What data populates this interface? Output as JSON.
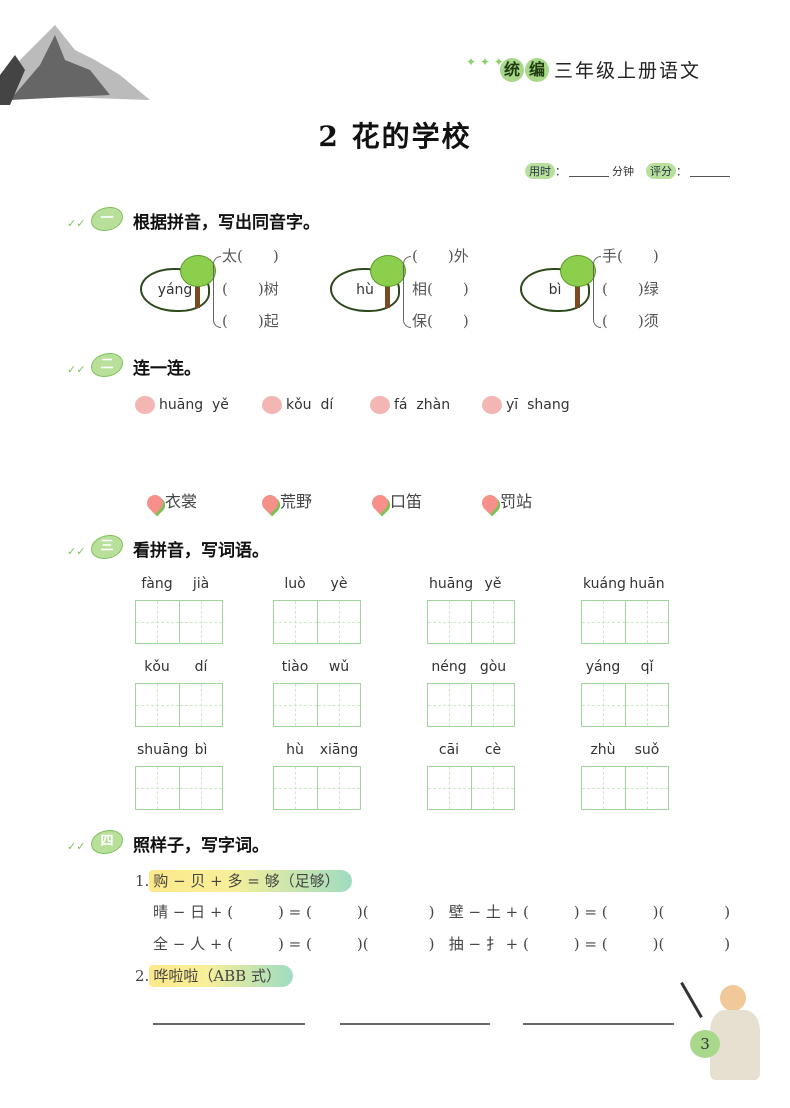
{
  "header": {
    "series_badges": [
      "统",
      "编"
    ],
    "book": "三年级上册语文"
  },
  "title": "2 花的学校",
  "meta": {
    "time_label": "用时",
    "time_unit": "分钟",
    "score_label": "评分",
    "colon": "："
  },
  "sections": [
    {
      "num": "一",
      "title": "根据拼音，写出同音字。"
    },
    {
      "num": "二",
      "title": "连一连。"
    },
    {
      "num": "三",
      "title": "看拼音，写词语。"
    },
    {
      "num": "四",
      "title": "照样子，写字词。"
    }
  ],
  "homophones": [
    {
      "pinyin": "yáng",
      "items": [
        "太(　　)",
        "(　　)树",
        "(　　)起"
      ]
    },
    {
      "pinyin": "hù",
      "items": [
        "(　　)外",
        "相(　　)",
        "保(　　)"
      ]
    },
    {
      "pinyin": "bì",
      "items": [
        "手(　　)",
        "(　　)绿",
        "(　　)须"
      ]
    }
  ],
  "matching": {
    "pinyin": [
      "huāng  yě",
      "kǒu  dí",
      "fá  zhàn",
      "yī  shang"
    ],
    "words": [
      "衣裳",
      "荒野",
      "口笛",
      "罚站"
    ]
  },
  "writing": [
    [
      "fàng",
      "jià"
    ],
    [
      "luò",
      "yè"
    ],
    [
      "huāng",
      "yě"
    ],
    [
      "kuáng",
      "huān"
    ],
    [
      "kǒu",
      "dí"
    ],
    [
      "tiào",
      "wǔ"
    ],
    [
      "néng",
      "gòu"
    ],
    [
      "yáng",
      "qǐ"
    ],
    [
      "shuāng",
      "bì"
    ],
    [
      "hù",
      "xiāng"
    ],
    [
      "cāi",
      "cè"
    ],
    [
      "zhù",
      "suǒ"
    ]
  ],
  "pattern": {
    "q1_num": "1.",
    "q1_example": "购 − 贝 + 多 = 够（足够）",
    "q1_rows": [
      "晴 − 日 + (　　　) = (　　　)(　　　　)   壁 − 土 + (　　　) = (　　　)(　　　　)",
      "全 − 人 + (　　　) = (　　　)(　　　　)   抽 − 扌 + (　　　) = (　　　)(　　　　)"
    ],
    "q2_num": "2.",
    "q2_example": "哗啦啦（ABB 式）"
  },
  "page_number": "3",
  "colors": {
    "accent_green": "#a8d88a",
    "grid_green": "#9fd49a"
  }
}
